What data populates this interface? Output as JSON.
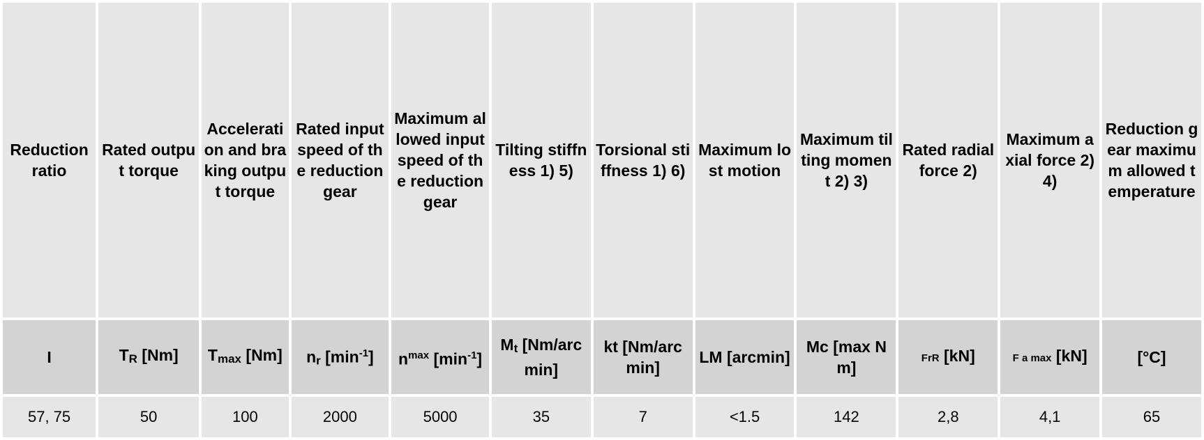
{
  "headers": [
    "Reduction ratio",
    "Rated output torque",
    "Acceleration and braking output torque",
    "Rated input speed of the reduction gear",
    "Maximum allowed input speed of the reduction gear",
    "Tilting stiffness 1) 5)",
    "Torsional stiffness 1) 6)",
    "Maximum lost motion",
    "Maximum tilting moment 2) 3)",
    "Rated radial force 2)",
    "Maximum axial force 2) 4)",
    "Reduction gear maximum allowed temperature"
  ],
  "symbols": {
    "c1": "I",
    "c2": {
      "main": "T",
      "sub": "R",
      "unit": " [Nm]"
    },
    "c3": {
      "main": "T",
      "sub": "max",
      "unit": " [Nm]"
    },
    "c4": {
      "main": "n",
      "sub": "r",
      "unit": " [min",
      "sup": "-1",
      "end": "]"
    },
    "c5": {
      "main": "n",
      "sup1": "max",
      "unit": " [min",
      "sup": "-1",
      "end": "]"
    },
    "c6": {
      "main": "M",
      "sub": "t",
      "unit": " [Nm/arc min]"
    },
    "c7": "kt  [Nm/arc min]",
    "c8": "LM [arcmin]",
    "c9": "Mc [max Nm]",
    "c10": {
      "small": "FrR",
      "unit": " [kN]"
    },
    "c11": {
      "small": "F a max",
      "unit": " [kN]"
    },
    "c12": "[°C]"
  },
  "values": [
    "57, 75",
    "50",
    "100",
    "2000",
    "5000",
    "35",
    "7",
    "<1.5",
    "142",
    "2,8",
    "4,1",
    "65"
  ]
}
